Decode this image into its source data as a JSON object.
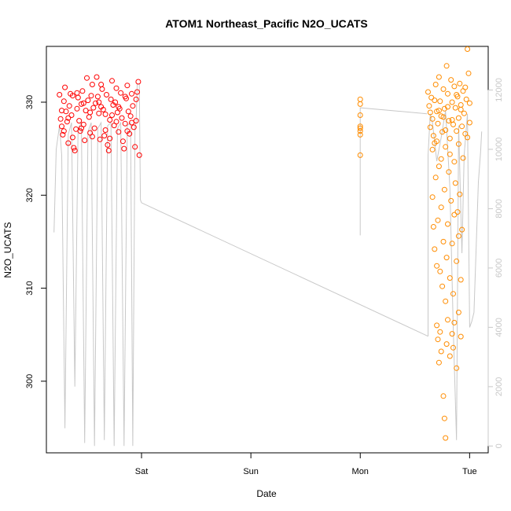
{
  "chart_data": {
    "type": "scatter",
    "title": "ATOM1 Northeast_Pacific N2O_UCATS",
    "xlabel": "Date",
    "ylabel": "N2O_UCATS",
    "x_ticks": [
      {
        "label": "Sat",
        "day": 1.0
      },
      {
        "label": "Sun",
        "day": 2.0
      },
      {
        "label": "Mon",
        "day": 3.0
      },
      {
        "label": "Tue",
        "day": 4.0
      }
    ],
    "xlim_days": [
      0.13,
      4.17
    ],
    "y_ticks": [
      300,
      310,
      320,
      330
    ],
    "ylim": [
      292.3,
      336.0
    ],
    "y2_ticks": [
      0,
      2000,
      4000,
      6000,
      8000,
      10000,
      12000
    ],
    "y2lim": [
      -230,
      13470
    ],
    "colors": {
      "series1": "#ff0000",
      "series2": "#ff8c00",
      "altitude_line": "#c8c8c8"
    },
    "grid": false,
    "legend": "none",
    "series": [
      {
        "color": "#ff0000",
        "x_range_days": [
          0.25,
          0.98
        ],
        "y_range": [
          324.0,
          332.8
        ],
        "points": [
          [
            0.25,
            330.8
          ],
          [
            0.26,
            328.2
          ],
          [
            0.27,
            327.4
          ],
          [
            0.28,
            326.5
          ],
          [
            0.29,
            330.1
          ],
          [
            0.3,
            331.6
          ],
          [
            0.31,
            329.0
          ],
          [
            0.32,
            327.9
          ],
          [
            0.33,
            325.6
          ],
          [
            0.34,
            329.6
          ],
          [
            0.35,
            330.9
          ],
          [
            0.36,
            328.6
          ],
          [
            0.37,
            326.2
          ],
          [
            0.38,
            325.1
          ],
          [
            0.39,
            324.8
          ],
          [
            0.4,
            327.1
          ],
          [
            0.41,
            329.3
          ],
          [
            0.42,
            330.5
          ],
          [
            0.43,
            328.0
          ],
          [
            0.44,
            326.9
          ],
          [
            0.45,
            329.8
          ],
          [
            0.46,
            331.2
          ],
          [
            0.47,
            327.6
          ],
          [
            0.48,
            325.9
          ],
          [
            0.49,
            329.1
          ],
          [
            0.5,
            332.6
          ],
          [
            0.51,
            330.2
          ],
          [
            0.52,
            328.4
          ],
          [
            0.53,
            326.7
          ],
          [
            0.54,
            330.7
          ],
          [
            0.55,
            331.9
          ],
          [
            0.56,
            329.4
          ],
          [
            0.57,
            327.2
          ],
          [
            0.58,
            329.9
          ],
          [
            0.59,
            332.7
          ],
          [
            0.6,
            330.6
          ],
          [
            0.61,
            328.8
          ],
          [
            0.62,
            326.0
          ],
          [
            0.63,
            329.5
          ],
          [
            0.64,
            331.4
          ],
          [
            0.65,
            329.2
          ],
          [
            0.66,
            326.4
          ],
          [
            0.67,
            328.7
          ],
          [
            0.68,
            330.8
          ],
          [
            0.69,
            325.4
          ],
          [
            0.7,
            324.8
          ],
          [
            0.71,
            328.1
          ],
          [
            0.72,
            330.3
          ],
          [
            0.73,
            332.3
          ],
          [
            0.74,
            329.7
          ],
          [
            0.75,
            327.5
          ],
          [
            0.76,
            330.0
          ],
          [
            0.77,
            331.5
          ],
          [
            0.78,
            328.9
          ],
          [
            0.79,
            326.8
          ],
          [
            0.8,
            329.3
          ],
          [
            0.81,
            331.0
          ],
          [
            0.82,
            328.3
          ],
          [
            0.83,
            325.8
          ],
          [
            0.84,
            325.0
          ],
          [
            0.85,
            327.7
          ],
          [
            0.86,
            330.4
          ],
          [
            0.87,
            331.8
          ],
          [
            0.88,
            329.0
          ],
          [
            0.89,
            326.6
          ],
          [
            0.9,
            328.5
          ],
          [
            0.91,
            330.9
          ],
          [
            0.92,
            329.6
          ],
          [
            0.93,
            327.3
          ],
          [
            0.94,
            325.2
          ],
          [
            0.95,
            328.0
          ],
          [
            0.96,
            331.1
          ],
          [
            0.97,
            332.2
          ],
          [
            0.98,
            324.3
          ],
          [
            0.27,
            329.1
          ],
          [
            0.33,
            328.3
          ],
          [
            0.41,
            331.0
          ],
          [
            0.47,
            329.9
          ],
          [
            0.53,
            328.9
          ],
          [
            0.61,
            330.0
          ],
          [
            0.67,
            327.0
          ],
          [
            0.73,
            328.6
          ],
          [
            0.79,
            329.5
          ],
          [
            0.85,
            330.6
          ],
          [
            0.91,
            327.8
          ],
          [
            0.95,
            330.3
          ],
          [
            0.29,
            326.9
          ],
          [
            0.37,
            330.7
          ],
          [
            0.45,
            327.2
          ],
          [
            0.55,
            326.3
          ],
          [
            0.63,
            331.9
          ],
          [
            0.71,
            326.1
          ],
          [
            0.77,
            327.9
          ],
          [
            0.87,
            326.9
          ]
        ]
      },
      {
        "color": "#ff8c00",
        "x_range_days": [
          3.0,
          4.0
        ],
        "y_range": [
          293.9,
          335.7
        ],
        "points": [
          [
            3.0,
            328.6
          ],
          [
            3.0,
            329.8
          ],
          [
            3.0,
            330.3
          ],
          [
            3.0,
            327.4
          ],
          [
            3.0,
            326.9
          ],
          [
            3.0,
            326.5
          ],
          [
            3.0,
            324.3
          ],
          [
            3.0,
            327.2
          ],
          [
            3.62,
            331.1
          ],
          [
            3.63,
            329.6
          ],
          [
            3.64,
            327.3
          ],
          [
            3.65,
            330.5
          ],
          [
            3.66,
            328.2
          ],
          [
            3.67,
            326.4
          ],
          [
            3.68,
            325.6
          ],
          [
            3.69,
            331.9
          ],
          [
            3.7,
            329.0
          ],
          [
            3.71,
            327.7
          ],
          [
            3.72,
            332.7
          ],
          [
            3.73,
            330.1
          ],
          [
            3.74,
            328.5
          ],
          [
            3.75,
            326.8
          ],
          [
            3.76,
            331.4
          ],
          [
            3.77,
            329.3
          ],
          [
            3.78,
            327.0
          ],
          [
            3.79,
            333.9
          ],
          [
            3.8,
            330.9
          ],
          [
            3.81,
            328.0
          ],
          [
            3.82,
            326.1
          ],
          [
            3.83,
            332.4
          ],
          [
            3.84,
            330.0
          ],
          [
            3.85,
            327.6
          ],
          [
            3.86,
            331.7
          ],
          [
            3.87,
            329.4
          ],
          [
            3.88,
            326.9
          ],
          [
            3.89,
            330.6
          ],
          [
            3.9,
            328.3
          ],
          [
            3.91,
            332.0
          ],
          [
            3.92,
            329.7
          ],
          [
            3.93,
            327.4
          ],
          [
            3.94,
            331.2
          ],
          [
            3.95,
            328.8
          ],
          [
            3.96,
            326.6
          ],
          [
            3.97,
            330.3
          ],
          [
            3.98,
            335.7
          ],
          [
            3.99,
            333.1
          ],
          [
            4.0,
            329.9
          ],
          [
            4.0,
            327.8
          ],
          [
            3.66,
            319.8
          ],
          [
            3.67,
            316.6
          ],
          [
            3.68,
            314.2
          ],
          [
            3.69,
            321.9
          ],
          [
            3.7,
            312.4
          ],
          [
            3.71,
            317.3
          ],
          [
            3.72,
            323.1
          ],
          [
            3.73,
            311.8
          ],
          [
            3.74,
            318.7
          ],
          [
            3.75,
            310.2
          ],
          [
            3.76,
            315.0
          ],
          [
            3.77,
            320.6
          ],
          [
            3.78,
            308.6
          ],
          [
            3.79,
            313.3
          ],
          [
            3.8,
            316.9
          ],
          [
            3.81,
            322.5
          ],
          [
            3.82,
            311.1
          ],
          [
            3.83,
            319.4
          ],
          [
            3.84,
            314.8
          ],
          [
            3.85,
            309.4
          ],
          [
            3.86,
            317.9
          ],
          [
            3.87,
            321.3
          ],
          [
            3.88,
            312.9
          ],
          [
            3.89,
            318.2
          ],
          [
            3.9,
            315.6
          ],
          [
            3.91,
            320.1
          ],
          [
            3.92,
            310.9
          ],
          [
            3.93,
            316.3
          ],
          [
            3.7,
            306.0
          ],
          [
            3.71,
            304.5
          ],
          [
            3.72,
            302.0
          ],
          [
            3.73,
            305.3
          ],
          [
            3.74,
            303.2
          ],
          [
            3.76,
            298.4
          ],
          [
            3.77,
            296.0
          ],
          [
            3.78,
            293.9
          ],
          [
            3.79,
            304.0
          ],
          [
            3.8,
            306.6
          ],
          [
            3.82,
            302.7
          ],
          [
            3.84,
            305.1
          ],
          [
            3.85,
            303.6
          ],
          [
            3.86,
            306.3
          ],
          [
            3.88,
            301.4
          ],
          [
            3.9,
            307.4
          ],
          [
            3.92,
            304.8
          ],
          [
            3.64,
            328.9
          ],
          [
            3.68,
            330.2
          ],
          [
            3.72,
            329.1
          ],
          [
            3.76,
            328.4
          ],
          [
            3.8,
            329.5
          ],
          [
            3.84,
            328.1
          ],
          [
            3.88,
            330.8
          ],
          [
            3.92,
            329.2
          ],
          [
            3.96,
            331.6
          ],
          [
            3.66,
            324.9
          ],
          [
            3.7,
            325.8
          ],
          [
            3.74,
            323.9
          ],
          [
            3.78,
            325.2
          ],
          [
            3.82,
            324.4
          ],
          [
            3.86,
            323.6
          ],
          [
            3.9,
            325.5
          ],
          [
            3.94,
            324.0
          ],
          [
            3.98,
            326.2
          ]
        ]
      }
    ],
    "altitude_line": {
      "color": "#c8c8c8",
      "points": [
        [
          0.2,
          7200
        ],
        [
          0.22,
          10000
        ],
        [
          0.25,
          10800
        ],
        [
          0.27,
          9800
        ],
        [
          0.3,
          600
        ],
        [
          0.33,
          10500
        ],
        [
          0.36,
          10900
        ],
        [
          0.39,
          2000
        ],
        [
          0.42,
          10700
        ],
        [
          0.45,
          10900
        ],
        [
          0.48,
          100
        ],
        [
          0.51,
          10600
        ],
        [
          0.54,
          10900
        ],
        [
          0.57,
          0
        ],
        [
          0.6,
          10700
        ],
        [
          0.63,
          10900
        ],
        [
          0.66,
          200
        ],
        [
          0.69,
          10800
        ],
        [
          0.72,
          10900
        ],
        [
          0.75,
          0
        ],
        [
          0.78,
          10700
        ],
        [
          0.81,
          10900
        ],
        [
          0.84,
          0
        ],
        [
          0.87,
          10800
        ],
        [
          0.9,
          10900
        ],
        [
          0.92,
          0
        ],
        [
          0.94,
          10800
        ],
        [
          0.95,
          10900
        ],
        [
          0.96,
          12200
        ],
        [
          0.98,
          12200
        ],
        [
          0.99,
          8300
        ],
        [
          1.0,
          8200
        ],
        [
          3.62,
          3700
        ],
        [
          3.62,
          9800
        ],
        [
          3.64,
          11200
        ],
        [
          3.66,
          10900
        ],
        [
          3.7,
          9600
        ],
        [
          3.74,
          10400
        ],
        [
          3.78,
          11300
        ],
        [
          3.82,
          8700
        ],
        [
          3.85,
          4000
        ],
        [
          3.88,
          200
        ],
        [
          3.9,
          10800
        ],
        [
          3.93,
          6500
        ],
        [
          3.95,
          9800
        ],
        [
          3.98,
          11200
        ],
        [
          4.0,
          4000
        ],
        [
          4.02,
          4200
        ],
        [
          4.04,
          4500
        ],
        [
          4.06,
          6700
        ],
        [
          4.08,
          8900
        ],
        [
          4.1,
          9900
        ],
        [
          4.11,
          10600
        ]
      ],
      "segment": [
        [
          3.0,
          7100
        ],
        [
          3.0,
          11400
        ],
        [
          3.61,
          11200
        ]
      ]
    }
  }
}
